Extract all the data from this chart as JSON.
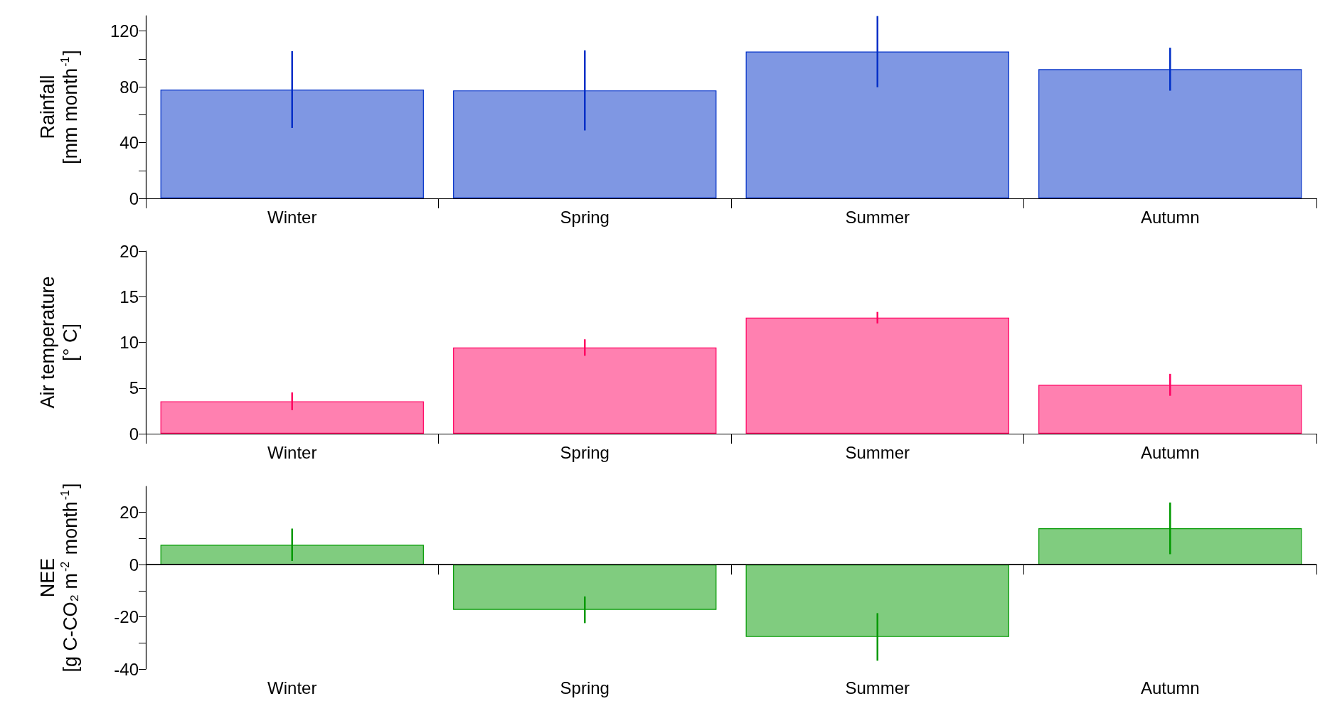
{
  "chart_data": [
    {
      "type": "bar",
      "ylabel": "Rainfall\n[mm month$^{-1}$]",
      "categories": [
        "Winter",
        "Spring",
        "Summer",
        "Autumn"
      ],
      "series": [
        {
          "color": "#7f97e3",
          "values": [
            78,
            77.4,
            105.2,
            92.6
          ],
          "errors": [
            27.5,
            28.7,
            25.5,
            15.4
          ]
        }
      ],
      "ylim": [
        0,
        131
      ],
      "yticks": [
        0,
        {
          "value": 20,
          "label": null
        },
        40,
        {
          "value": 60,
          "label": null
        },
        80,
        {
          "value": 100,
          "label": null
        },
        120
      ]
    },
    {
      "type": "bar",
      "ylabel": "Air temperature\n[° C]",
      "categories": [
        "Winter",
        "Spring",
        "Summer",
        "Autumn"
      ],
      "series": [
        {
          "color": "#ff80b0",
          "values": [
            3.55,
            9.43,
            12.7,
            5.35
          ],
          "errors": [
            0.97,
            0.9,
            0.63,
            1.2
          ]
        }
      ],
      "ylim": [
        0,
        20
      ],
      "yticks": [
        0,
        5,
        10,
        15,
        20
      ]
    },
    {
      "type": "bar",
      "ylabel": "NEE\n[g C-CO₂ m$^{-2}$ month$^{-1}$]",
      "categories": [
        "Winter",
        "Spring",
        "Summer",
        "Autumn"
      ],
      "series": [
        {
          "color": "#80cc7f",
          "values": [
            7.6,
            -17.3,
            -27.7,
            13.9
          ],
          "errors": [
            6.2,
            5.1,
            9.1,
            9.9
          ]
        }
      ],
      "ylim": [
        -40,
        30
      ],
      "yticks": [
        -40,
        {
          "value": -30,
          "label": null
        },
        -20,
        {
          "value": -10,
          "label": null
        },
        0,
        {
          "value": 10,
          "label": null
        },
        20
      ],
      "ref_lines": [
        {
          "axis": "y",
          "value": 0,
          "color": "#000000"
        }
      ]
    }
  ]
}
